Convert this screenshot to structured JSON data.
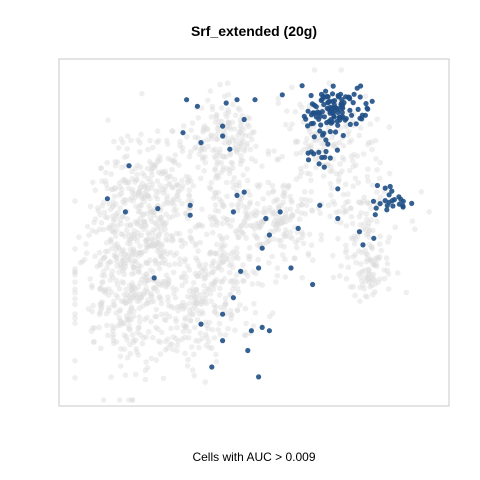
{
  "chart_data": {
    "type": "scatter",
    "title": "Srf_extended (20g)",
    "xlabel": "Cells with AUC > 0.009",
    "ylabel": "",
    "axes_visible": false,
    "frame": true,
    "grid": false,
    "colors": {
      "background_cells": "#dcdcdc",
      "high_auc_cells": "#1f4f86",
      "frame": "#c8c8c8"
    },
    "series": [
      {
        "name": "",
        "color": "#dcdcdc",
        "clusters": [
          {
            "cx": 0.16,
            "cy": 0.66,
            "sx": 0.075,
            "sy": 0.14,
            "n": 420
          },
          {
            "cx": 0.2,
            "cy": 0.4,
            "sx": 0.07,
            "sy": 0.1,
            "n": 320
          },
          {
            "cx": 0.34,
            "cy": 0.72,
            "sx": 0.06,
            "sy": 0.08,
            "n": 160
          },
          {
            "cx": 0.43,
            "cy": 0.52,
            "sx": 0.06,
            "sy": 0.12,
            "n": 200
          },
          {
            "cx": 0.38,
            "cy": 0.2,
            "sx": 0.05,
            "sy": 0.06,
            "n": 60
          },
          {
            "cx": 0.57,
            "cy": 0.46,
            "sx": 0.06,
            "sy": 0.07,
            "n": 150
          },
          {
            "cx": 0.7,
            "cy": 0.2,
            "sx": 0.07,
            "sy": 0.07,
            "n": 140
          },
          {
            "cx": 0.8,
            "cy": 0.41,
            "sx": 0.06,
            "sy": 0.05,
            "n": 80
          },
          {
            "cx": 0.81,
            "cy": 0.59,
            "sx": 0.035,
            "sy": 0.06,
            "n": 100
          },
          {
            "cx": 0.42,
            "cy": 0.22,
            "sx": 0.05,
            "sy": 0.08,
            "n": 110
          }
        ]
      },
      {
        "name": "",
        "color": "#1f4f86",
        "clusters": [
          {
            "cx": 0.72,
            "cy": 0.12,
            "sx": 0.045,
            "sy": 0.045,
            "n": 110
          },
          {
            "cx": 0.68,
            "cy": 0.23,
            "sx": 0.03,
            "sy": 0.03,
            "n": 15
          },
          {
            "cx": 0.88,
            "cy": 0.39,
            "sx": 0.035,
            "sy": 0.03,
            "n": 22
          }
        ],
        "points": [
          [
            0.31,
            0.09
          ],
          [
            0.34,
            0.11
          ],
          [
            0.3,
            0.19
          ],
          [
            0.35,
            0.22
          ],
          [
            0.41,
            0.2
          ],
          [
            0.43,
            0.24
          ],
          [
            0.45,
            0.09
          ],
          [
            0.47,
            0.15
          ],
          [
            0.5,
            0.09
          ],
          [
            0.42,
            0.1
          ],
          [
            0.41,
            0.17
          ],
          [
            0.15,
            0.29
          ],
          [
            0.09,
            0.39
          ],
          [
            0.14,
            0.43
          ],
          [
            0.23,
            0.42
          ],
          [
            0.32,
            0.41
          ],
          [
            0.32,
            0.44
          ],
          [
            0.45,
            0.38
          ],
          [
            0.47,
            0.37
          ],
          [
            0.44,
            0.43
          ],
          [
            0.53,
            0.45
          ],
          [
            0.57,
            0.43
          ],
          [
            0.54,
            0.5
          ],
          [
            0.52,
            0.54
          ],
          [
            0.51,
            0.6
          ],
          [
            0.46,
            0.61
          ],
          [
            0.44,
            0.69
          ],
          [
            0.62,
            0.48
          ],
          [
            0.6,
            0.6
          ],
          [
            0.66,
            0.65
          ],
          [
            0.68,
            0.41
          ],
          [
            0.73,
            0.45
          ],
          [
            0.79,
            0.49
          ],
          [
            0.83,
            0.51
          ],
          [
            0.8,
            0.53
          ],
          [
            0.73,
            0.36
          ],
          [
            0.84,
            0.35
          ],
          [
            0.22,
            0.63
          ],
          [
            0.35,
            0.77
          ],
          [
            0.41,
            0.74
          ],
          [
            0.49,
            0.79
          ],
          [
            0.52,
            0.78
          ],
          [
            0.54,
            0.79
          ],
          [
            0.48,
            0.85
          ],
          [
            0.38,
            0.9
          ],
          [
            0.51,
            0.93
          ],
          [
            0.41,
            0.82
          ]
        ]
      }
    ]
  }
}
